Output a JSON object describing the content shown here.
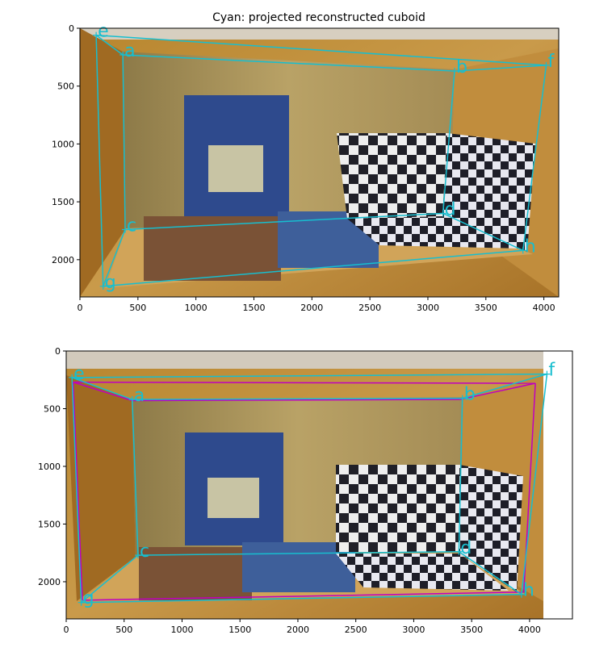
{
  "chart_data": [
    {
      "type": "scatter",
      "title": "Cyan: projected reconstructed cuboid",
      "xlim": [
        0,
        4128
      ],
      "ylim": [
        2322,
        0
      ],
      "xticks": [
        0,
        500,
        1000,
        1500,
        2000,
        2500,
        3000,
        3500,
        4000
      ],
      "yticks": [
        0,
        500,
        1000,
        1500,
        2000
      ],
      "background": "photo of a wooden bookshelf with books and a checkerboard calibration pattern",
      "series": [
        {
          "color": "#17becf",
          "points": [
            {
              "label": "a",
              "x": 370,
              "y": 230
            },
            {
              "label": "b",
              "x": 3230,
              "y": 370
            },
            {
              "label": "c",
              "x": 390,
              "y": 1740
            },
            {
              "label": "d",
              "x": 3130,
              "y": 1600
            },
            {
              "label": "e",
              "x": 140,
              "y": 60
            },
            {
              "label": "f",
              "x": 4020,
              "y": 320
            },
            {
              "label": "g",
              "x": 200,
              "y": 2230
            },
            {
              "label": "h",
              "x": 3820,
              "y": 1920
            }
          ],
          "edges": [
            [
              "e",
              "f"
            ],
            [
              "a",
              "b"
            ],
            [
              "e",
              "a"
            ],
            [
              "f",
              "b"
            ],
            [
              "a",
              "c"
            ],
            [
              "b",
              "d"
            ],
            [
              "c",
              "d"
            ],
            [
              "e",
              "g"
            ],
            [
              "f",
              "h"
            ],
            [
              "c",
              "g"
            ],
            [
              "d",
              "h"
            ],
            [
              "g",
              "h"
            ]
          ]
        }
      ]
    },
    {
      "type": "scatter",
      "title": "",
      "xlim": [
        0,
        4370
      ],
      "ylim": [
        2322,
        0
      ],
      "xticks": [
        0,
        500,
        1000,
        1500,
        2000,
        2500,
        3000,
        3500,
        4000
      ],
      "yticks": [
        0,
        500,
        1000,
        1500,
        2000
      ],
      "background": "rectified photo of the same bookshelf",
      "series": [
        {
          "color": "#17becf",
          "points": [
            {
              "label": "a",
              "x": 570,
              "y": 420
            },
            {
              "label": "b",
              "x": 3420,
              "y": 410
            },
            {
              "label": "c",
              "x": 620,
              "y": 1770
            },
            {
              "label": "d",
              "x": 3390,
              "y": 1740
            },
            {
              "label": "e",
              "x": 50,
              "y": 230
            },
            {
              "label": "f",
              "x": 4150,
              "y": 200
            },
            {
              "label": "g",
              "x": 130,
              "y": 2180
            },
            {
              "label": "h",
              "x": 3930,
              "y": 2110
            }
          ],
          "edges": [
            [
              "e",
              "f"
            ],
            [
              "a",
              "b"
            ],
            [
              "e",
              "a"
            ],
            [
              "f",
              "b"
            ],
            [
              "a",
              "c"
            ],
            [
              "b",
              "d"
            ],
            [
              "c",
              "d"
            ],
            [
              "e",
              "g"
            ],
            [
              "f",
              "h"
            ],
            [
              "c",
              "g"
            ],
            [
              "d",
              "h"
            ],
            [
              "g",
              "h"
            ]
          ]
        },
        {
          "color": "#bf00bf",
          "points": [
            {
              "x": 60,
              "y": 270
            },
            {
              "x": 4050,
              "y": 280
            },
            {
              "x": 140,
              "y": 2160
            },
            {
              "x": 3950,
              "y": 2090
            },
            {
              "x": 570,
              "y": 430
            },
            {
              "x": 3400,
              "y": 420
            }
          ],
          "edges": [
            [
              0,
              1
            ],
            [
              0,
              2
            ],
            [
              1,
              3
            ],
            [
              2,
              3
            ],
            [
              4,
              5
            ],
            [
              4,
              0
            ],
            [
              5,
              1
            ]
          ]
        }
      ]
    }
  ]
}
